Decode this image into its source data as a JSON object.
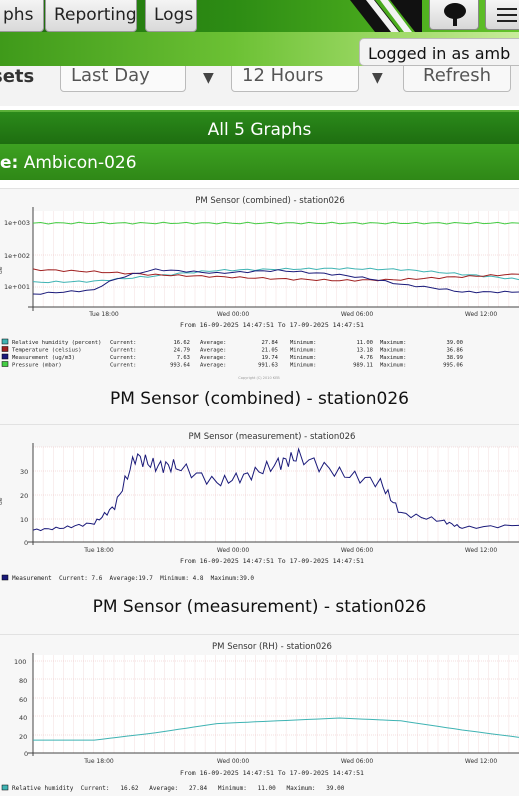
{
  "nav": {
    "tabs": [
      {
        "label": "phs"
      },
      {
        "label": "Reporting"
      },
      {
        "label": "Logs"
      }
    ]
  },
  "login": {
    "text": "Logged in as amb"
  },
  "controls": {
    "label": "sets",
    "period": "Last Day",
    "interval": "12 Hours",
    "refresh": "Refresh"
  },
  "header": {
    "title": "All 5 Graphs",
    "station_label": "e:",
    "station_value": "Ambicon-026"
  },
  "graphs": [
    {
      "inner_title": "PM Sensor (combined) - station026",
      "caption": "PM Sensor (combined) - station026",
      "x_ticks": [
        "Tue 18:00",
        "Wed 00:00",
        "Wed 06:00",
        "Wed 12:00"
      ],
      "y_ticks": [
        "1e+003",
        "1e+002",
        "1e+001"
      ],
      "y_axis_stub": "ue",
      "range": "From 16-09-2025 14:47:51 To 17-09-2025 14:47:51",
      "legend": [
        {
          "name": "Relative humidity (percent)",
          "color": "#3fb3b3",
          "current": "16.62",
          "average": "27.84",
          "minimum": "11.00",
          "maximum": "39.00"
        },
        {
          "name": "Temperature (celsius)",
          "color": "#a02020",
          "current": "24.79",
          "average": "21.05",
          "minimum": "13.18",
          "maximum": "36.86"
        },
        {
          "name": "Measurement (ug/m3)",
          "color": "#1a1a7a",
          "current": "7.63",
          "average": "19.74",
          "minimum": "4.76",
          "maximum": "38.99"
        },
        {
          "name": "Pressure (mbar)",
          "color": "#44cc44",
          "current": "993.64",
          "average": "991.63",
          "minimum": "989.11",
          "maximum": "995.06"
        }
      ],
      "copyright": "Copyright (C) 2010 KEB"
    },
    {
      "inner_title": "PM Sensor (measurement) - station026",
      "caption": "PM Sensor (measurement) - station026",
      "x_ticks": [
        "Tue 18:00",
        "Wed 00:00",
        "Wed 06:00",
        "Wed 12:00"
      ],
      "y_ticks": [
        "30",
        "20",
        "10",
        "0"
      ],
      "y_axis_stub": "ue",
      "range": "From 16-09-2025 14:47:51 To 17-09-2025 14:47:51",
      "legend_line": "Measurement  Current: 7.6  Average:19.7  Minimum: 4.8  Maximum:39.0",
      "legend_color": "#1a1a7a"
    },
    {
      "inner_title": "PM Sensor (RH) - station026",
      "x_ticks": [
        "Tue 18:00",
        "Wed 00:00",
        "Wed 06:00",
        "Wed 12:00"
      ],
      "y_ticks": [
        "100",
        "80",
        "60",
        "40",
        "20",
        "0"
      ],
      "range": "From 16-09-2025 14:47:51 To 17-09-2025 14:47:51",
      "legend_line": "Relative humidity  Current:   16.62   Average:   27.84   Minimum:   11.00   Maximum:   39.00",
      "legend_color": "#3fb3b3"
    }
  ],
  "chart_data": [
    {
      "type": "line",
      "title": "PM Sensor (combined) - station026",
      "ylog": true,
      "ylim": [
        5,
        2000
      ],
      "x": [
        "Tue 15:00",
        "Tue 18:00",
        "Tue 21:00",
        "Wed 00:00",
        "Wed 03:00",
        "Wed 06:00",
        "Wed 09:00",
        "Wed 12:00",
        "Wed 14:47"
      ],
      "series": [
        {
          "name": "Pressure (mbar)",
          "color": "#44cc44",
          "values": [
            992,
            992,
            993,
            993,
            992,
            991,
            991,
            992,
            994
          ]
        },
        {
          "name": "Relative humidity (percent)",
          "color": "#3fb3b3",
          "values": [
            14,
            15,
            22,
            33,
            36,
            38,
            35,
            25,
            17
          ]
        },
        {
          "name": "Temperature (celsius)",
          "color": "#a02020",
          "values": [
            35,
            30,
            24,
            21,
            18,
            16,
            17,
            21,
            25
          ]
        },
        {
          "name": "Measurement (ug/m3)",
          "color": "#1a1a7a",
          "values": [
            6,
            8,
            35,
            27,
            33,
            24,
            12,
            7,
            7
          ]
        }
      ]
    },
    {
      "type": "line",
      "title": "PM Sensor (measurement) - station026",
      "ylim": [
        0,
        40
      ],
      "x": [
        "Tue 15:00",
        "Tue 16:30",
        "Tue 18:00",
        "Tue 19:00",
        "Tue 20:00",
        "Tue 21:00",
        "Tue 22:00",
        "Wed 00:00",
        "Wed 01:30",
        "Wed 03:00",
        "Wed 04:00",
        "Wed 06:00",
        "Wed 08:00",
        "Wed 09:00",
        "Wed 11:00",
        "Wed 12:00",
        "Wed 14:47"
      ],
      "series": [
        {
          "name": "Measurement",
          "color": "#1a1a7a",
          "values": [
            5,
            6,
            8,
            15,
            36,
            32,
            32,
            25,
            28,
            33,
            36,
            29,
            25,
            12,
            9,
            6,
            7
          ]
        }
      ]
    },
    {
      "type": "line",
      "title": "PM Sensor (RH) - station026",
      "ylim": [
        0,
        100
      ],
      "x": [
        "Tue 15:00",
        "Tue 18:00",
        "Tue 21:00",
        "Wed 00:00",
        "Wed 03:00",
        "Wed 06:00",
        "Wed 09:00",
        "Wed 12:00",
        "Wed 14:47"
      ],
      "series": [
        {
          "name": "Relative humidity",
          "color": "#3fb3b3",
          "values": [
            14,
            14,
            22,
            32,
            35,
            38,
            35,
            25,
            17
          ]
        }
      ]
    }
  ]
}
